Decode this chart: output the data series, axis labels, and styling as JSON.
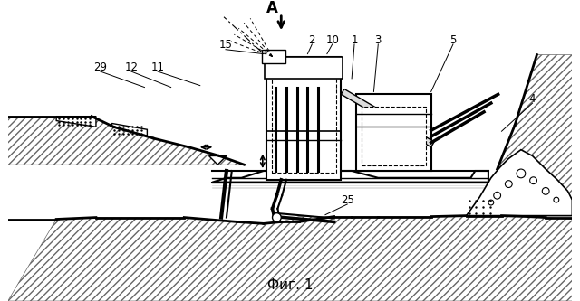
{
  "title": "Фиг. 1",
  "bg_color": "#ffffff",
  "fig_w": 6.4,
  "fig_h": 3.33,
  "dpi": 100
}
